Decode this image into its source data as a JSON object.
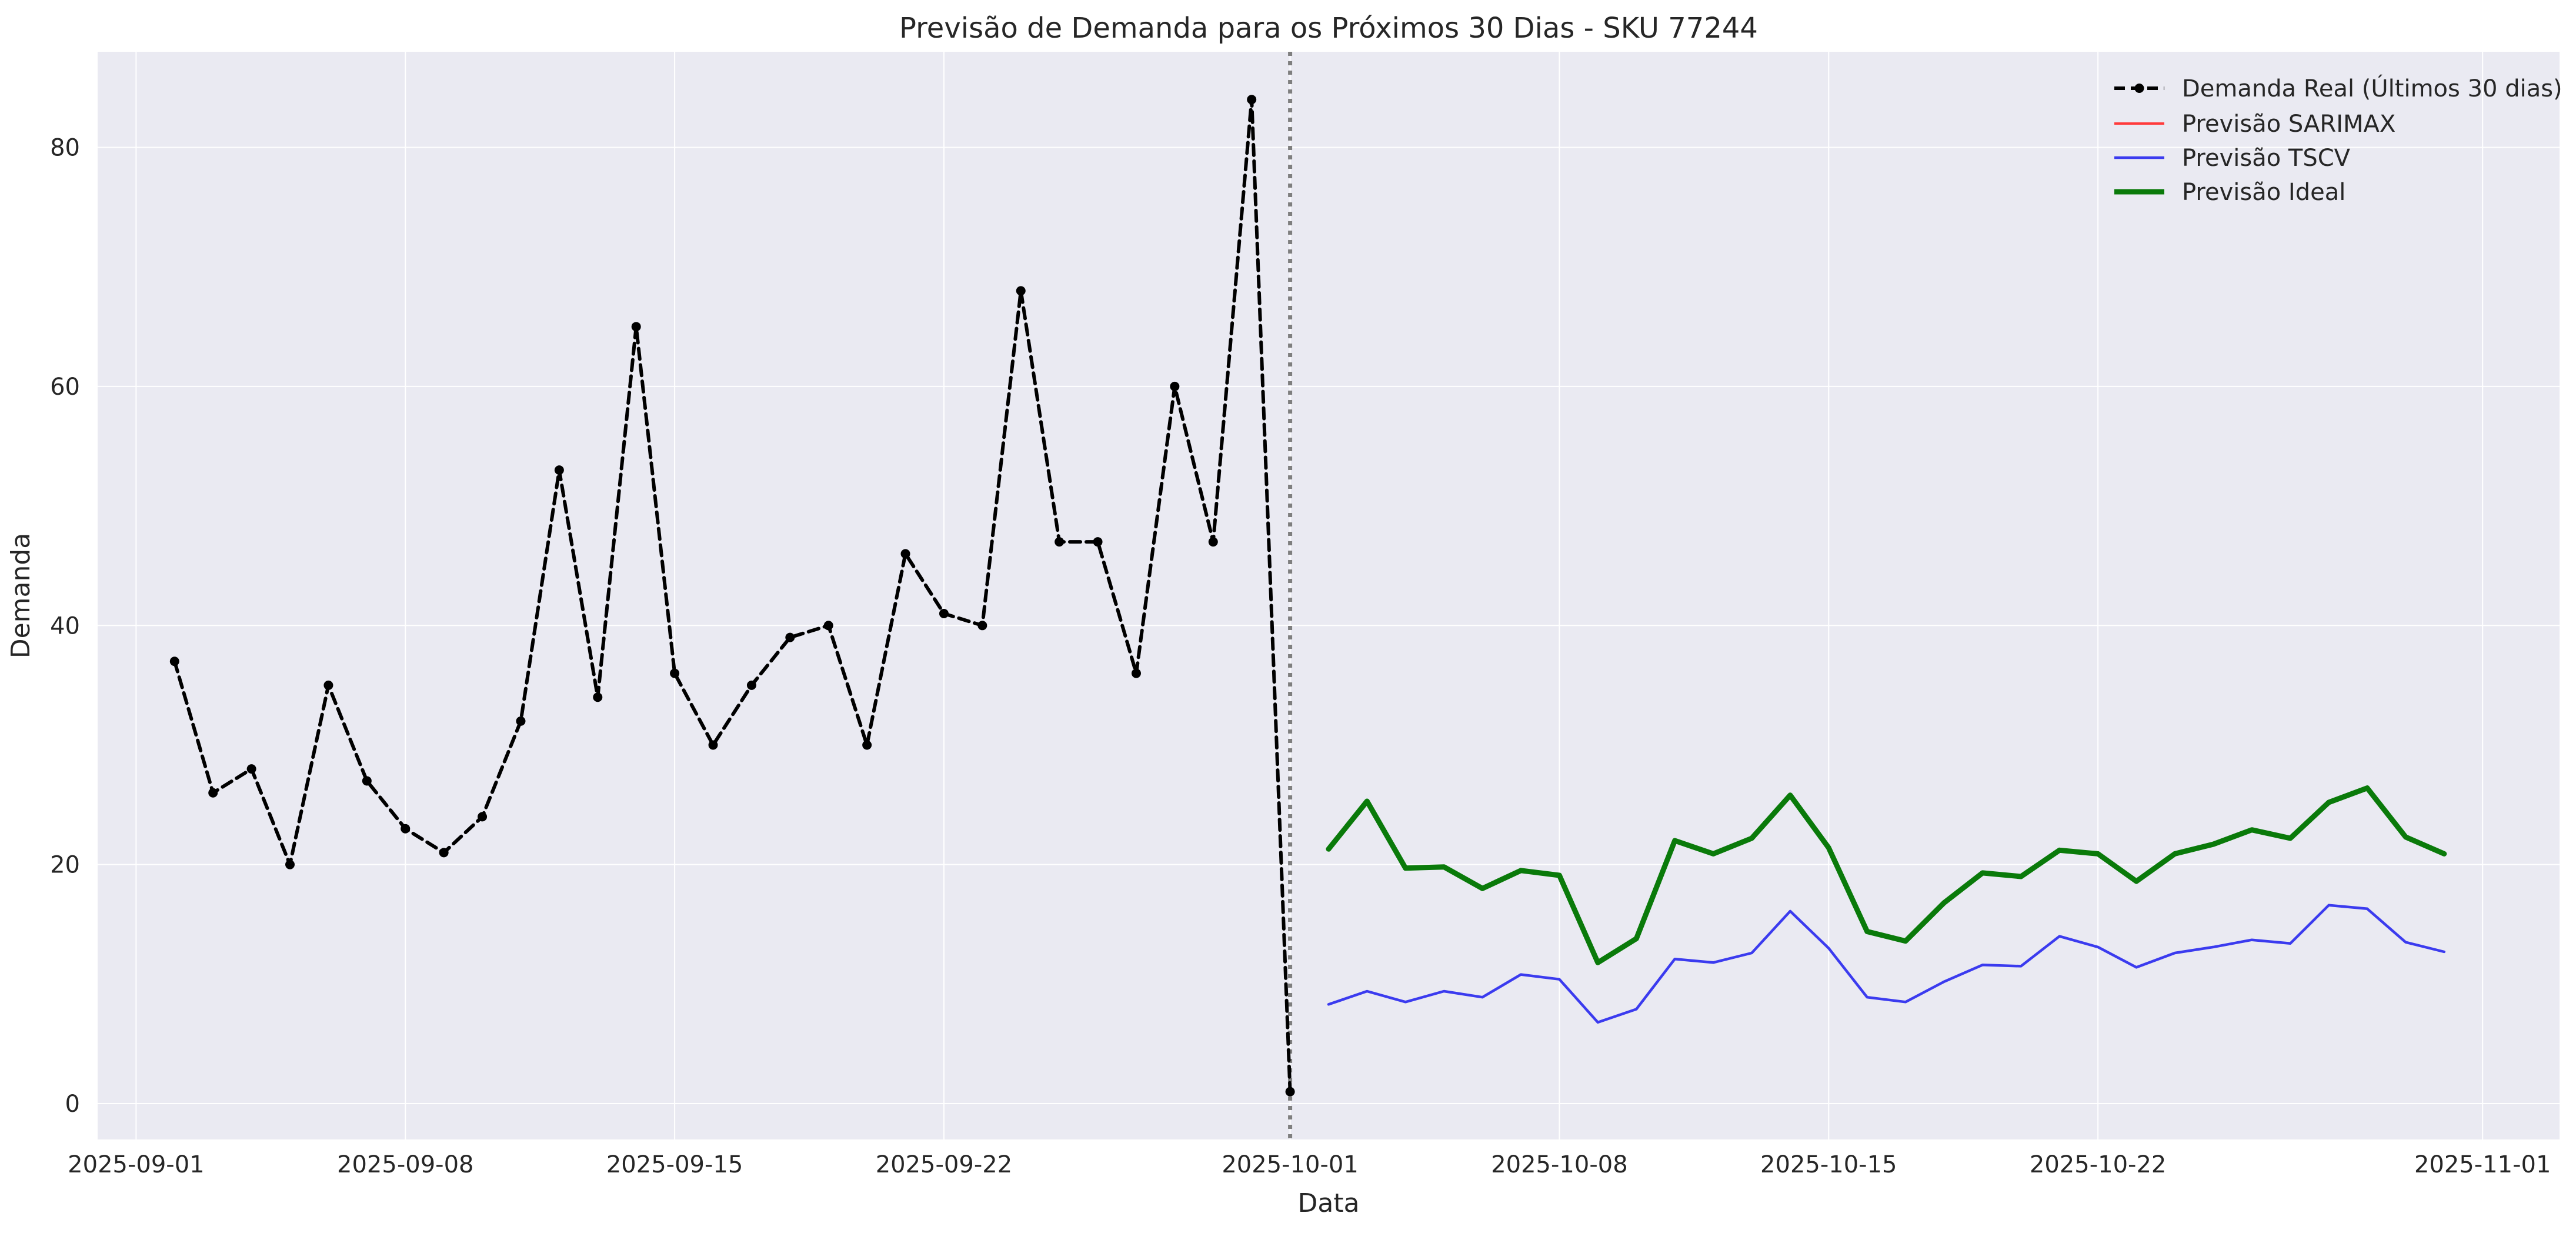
{
  "chart_data": {
    "type": "line",
    "title": "Previsão de Demanda para os Próximos 30 Dias - SKU 77244",
    "xlabel": "Data",
    "ylabel": "Demanda",
    "x_tick_labels": [
      "2025-09-01",
      "2025-09-08",
      "2025-09-15",
      "2025-09-22",
      "2025-10-01",
      "2025-10-08",
      "2025-10-15",
      "2025-10-22",
      "2025-11-01"
    ],
    "y_tick_labels": [
      "0",
      "20",
      "40",
      "60",
      "80"
    ],
    "xlim": [
      "2025-08-31",
      "2025-11-03"
    ],
    "ylim": [
      -3,
      88
    ],
    "grid": true,
    "legend_position": "top-right",
    "forecast_start_marker": "2025-10-01",
    "colors": {
      "plot_background": "#eaeaf2",
      "grid": "#ffffff",
      "real": "#000000",
      "sarimax": "#ff3b3b",
      "tscv": "#3b3bef",
      "ideal": "#0a7a0a",
      "vline": "#7f7f7f"
    },
    "series": [
      {
        "name": "Demanda Real (Últimos 30 dias)",
        "style": "black dashed with dot markers",
        "x": [
          "2025-09-02",
          "2025-09-03",
          "2025-09-04",
          "2025-09-05",
          "2025-09-06",
          "2025-09-07",
          "2025-09-08",
          "2025-09-09",
          "2025-09-10",
          "2025-09-11",
          "2025-09-12",
          "2025-09-13",
          "2025-09-14",
          "2025-09-15",
          "2025-09-16",
          "2025-09-17",
          "2025-09-18",
          "2025-09-19",
          "2025-09-20",
          "2025-09-21",
          "2025-09-22",
          "2025-09-23",
          "2025-09-24",
          "2025-09-25",
          "2025-09-26",
          "2025-09-27",
          "2025-09-28",
          "2025-09-29",
          "2025-09-30",
          "2025-10-01"
        ],
        "values": [
          37,
          26,
          28,
          20,
          35,
          27,
          23,
          21,
          24,
          32,
          53,
          34,
          65,
          36,
          30,
          35,
          39,
          40,
          30,
          46,
          41,
          40,
          68,
          47,
          47,
          36,
          60,
          47,
          84,
          1
        ]
      },
      {
        "name": "Previsão SARIMAX",
        "style": "red thin line",
        "x": [],
        "values": []
      },
      {
        "name": "Previsão TSCV",
        "style": "blue thin line",
        "x": [
          "2025-10-02",
          "2025-10-03",
          "2025-10-04",
          "2025-10-05",
          "2025-10-06",
          "2025-10-07",
          "2025-10-08",
          "2025-10-09",
          "2025-10-10",
          "2025-10-11",
          "2025-10-12",
          "2025-10-13",
          "2025-10-14",
          "2025-10-15",
          "2025-10-16",
          "2025-10-17",
          "2025-10-18",
          "2025-10-19",
          "2025-10-20",
          "2025-10-21",
          "2025-10-22",
          "2025-10-23",
          "2025-10-24",
          "2025-10-25",
          "2025-10-26",
          "2025-10-27",
          "2025-10-28",
          "2025-10-29",
          "2025-10-30",
          "2025-10-31"
        ],
        "values": [
          8.3,
          9.4,
          8.5,
          9.4,
          8.9,
          10.8,
          10.4,
          6.8,
          7.9,
          12.1,
          11.8,
          12.6,
          16.1,
          13.0,
          8.9,
          8.5,
          10.2,
          11.6,
          11.5,
          14.0,
          13.1,
          11.4,
          12.6,
          13.1,
          13.7,
          13.4,
          16.6,
          16.3,
          13.5,
          12.7
        ]
      },
      {
        "name": "Previsão Ideal",
        "style": "green thick line",
        "x": [
          "2025-10-02",
          "2025-10-03",
          "2025-10-04",
          "2025-10-05",
          "2025-10-06",
          "2025-10-07",
          "2025-10-08",
          "2025-10-09",
          "2025-10-10",
          "2025-10-11",
          "2025-10-12",
          "2025-10-13",
          "2025-10-14",
          "2025-10-15",
          "2025-10-16",
          "2025-10-17",
          "2025-10-18",
          "2025-10-19",
          "2025-10-20",
          "2025-10-21",
          "2025-10-22",
          "2025-10-23",
          "2025-10-24",
          "2025-10-25",
          "2025-10-26",
          "2025-10-27",
          "2025-10-28",
          "2025-10-29",
          "2025-10-30",
          "2025-10-31"
        ],
        "values": [
          21.3,
          25.3,
          19.7,
          19.8,
          18.0,
          19.5,
          19.1,
          11.8,
          13.8,
          22.0,
          20.9,
          22.2,
          25.8,
          21.4,
          14.4,
          13.6,
          16.8,
          19.3,
          19.0,
          21.2,
          20.9,
          18.6,
          20.9,
          21.7,
          22.9,
          22.2,
          25.2,
          26.4,
          22.3,
          20.9
        ]
      }
    ]
  }
}
